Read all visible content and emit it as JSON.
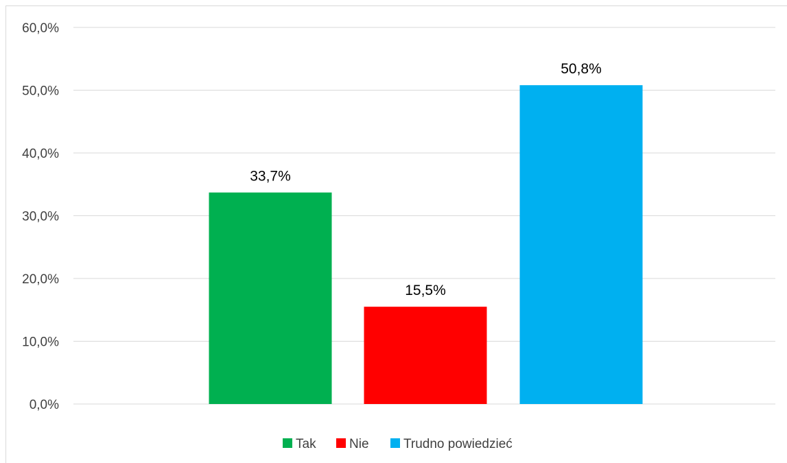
{
  "chart_data": {
    "type": "bar",
    "categories": [
      "Tak",
      "Nie",
      "Trudno powiedzieć"
    ],
    "values": [
      33.7,
      15.5,
      50.8
    ],
    "data_labels": [
      "33,7%",
      "15,5%",
      "50,8%"
    ],
    "colors": [
      "#00b050",
      "#ff0000",
      "#00b0f0"
    ],
    "title": "",
    "xlabel": "",
    "ylabel": "",
    "ylim": [
      0,
      60
    ],
    "yticks": [
      0,
      10,
      20,
      30,
      40,
      50,
      60
    ],
    "ytick_labels": [
      "0,0%",
      "10,0%",
      "20,0%",
      "30,0%",
      "40,0%",
      "50,0%",
      "60,0%"
    ],
    "grid": true,
    "legend": {
      "position": "bottom",
      "entries": [
        "Tak",
        "Nie",
        "Trudno powiedzieć"
      ]
    }
  }
}
